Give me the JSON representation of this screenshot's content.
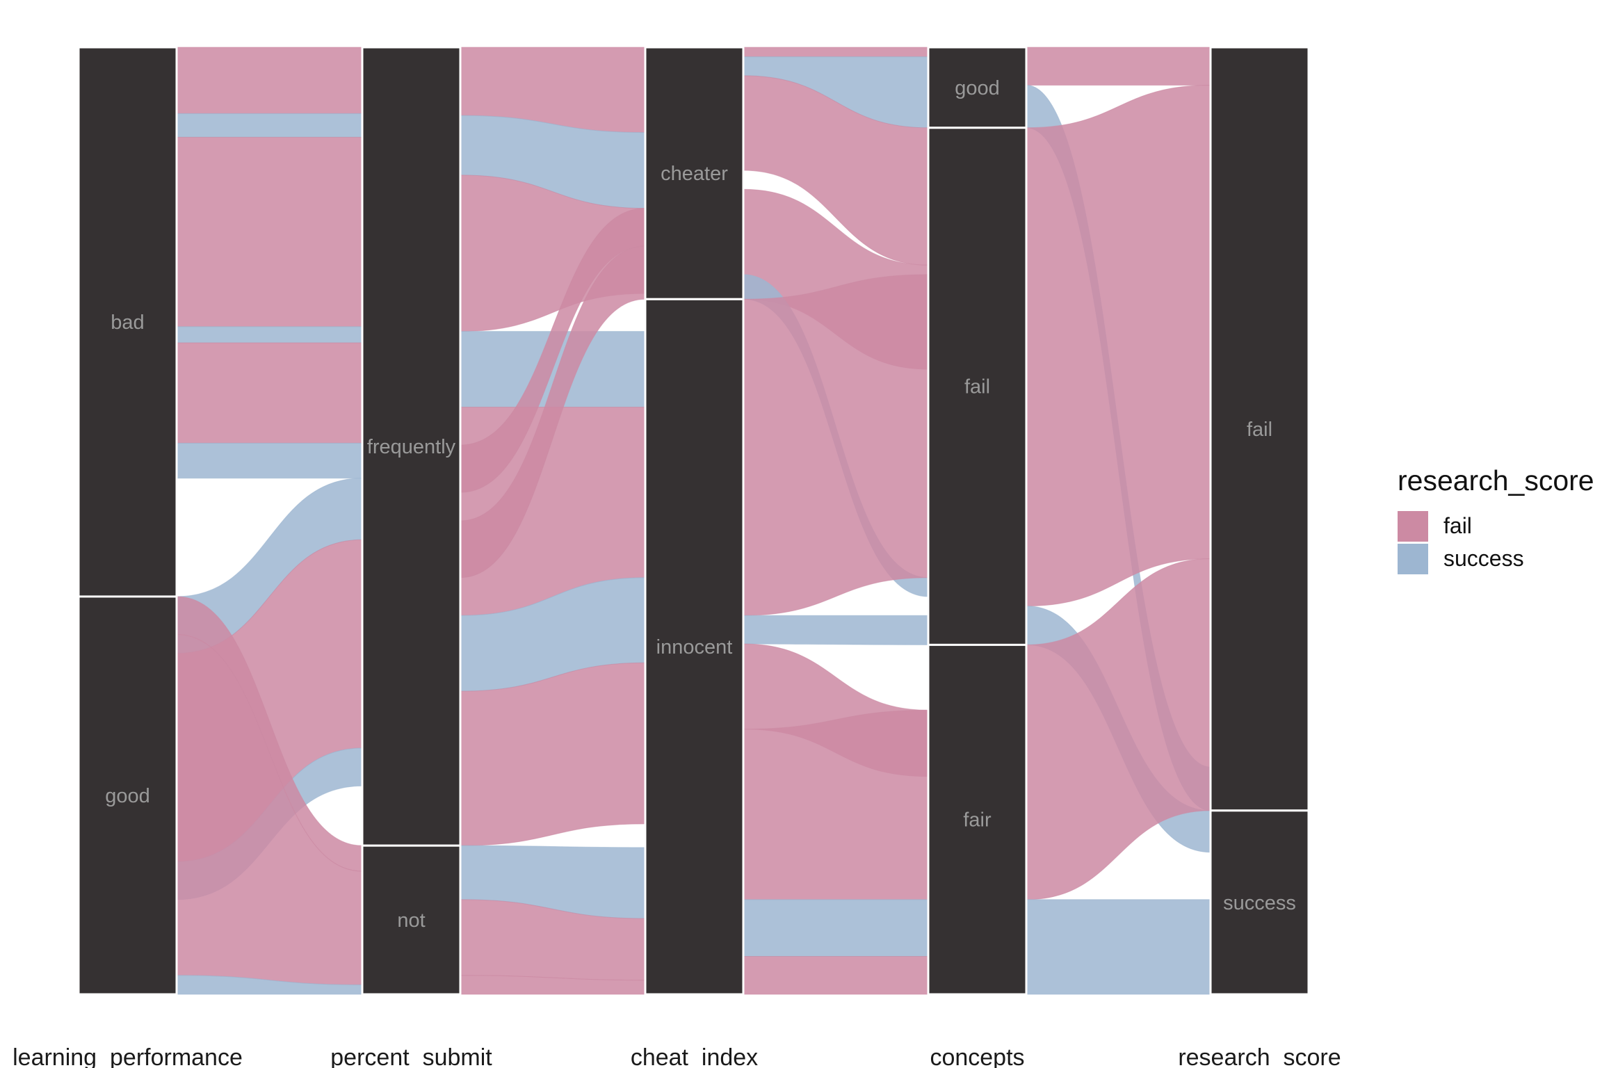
{
  "chart_data": {
    "type": "alluvial",
    "title": "",
    "fill_variable": "research_score",
    "axes": [
      "learning_performance",
      "percent_submit",
      "cheat_index",
      "concepts",
      "research_score"
    ],
    "strata": [
      {
        "axis": "learning_performance",
        "levels": [
          {
            "label": "bad",
            "share": 0.58
          },
          {
            "label": "good",
            "share": 0.42
          }
        ]
      },
      {
        "axis": "percent_submit",
        "levels": [
          {
            "label": "frequently",
            "share": 0.843
          },
          {
            "label": "not",
            "share": 0.157
          }
        ]
      },
      {
        "axis": "cheat_index",
        "levels": [
          {
            "label": "cheater",
            "share": 0.266
          },
          {
            "label": "innocent",
            "share": 0.734
          }
        ]
      },
      {
        "axis": "concepts",
        "levels": [
          {
            "label": "good",
            "share": 0.085
          },
          {
            "label": "fail",
            "share": 0.546
          },
          {
            "label": "fair",
            "share": 0.369
          }
        ]
      },
      {
        "axis": "research_score",
        "levels": [
          {
            "label": "fail",
            "share": 0.806
          },
          {
            "label": "success",
            "share": 0.194
          }
        ]
      }
    ],
    "legend": {
      "title": "research_score",
      "position": "right",
      "entries": [
        {
          "label": "fail",
          "color": "#cc8aa3"
        },
        {
          "label": "success",
          "color": "#9db6d1"
        }
      ]
    },
    "colors": {
      "fail": "#cc8aa3",
      "success": "#9db6d1",
      "stratum": "#353132"
    },
    "grid": false
  }
}
